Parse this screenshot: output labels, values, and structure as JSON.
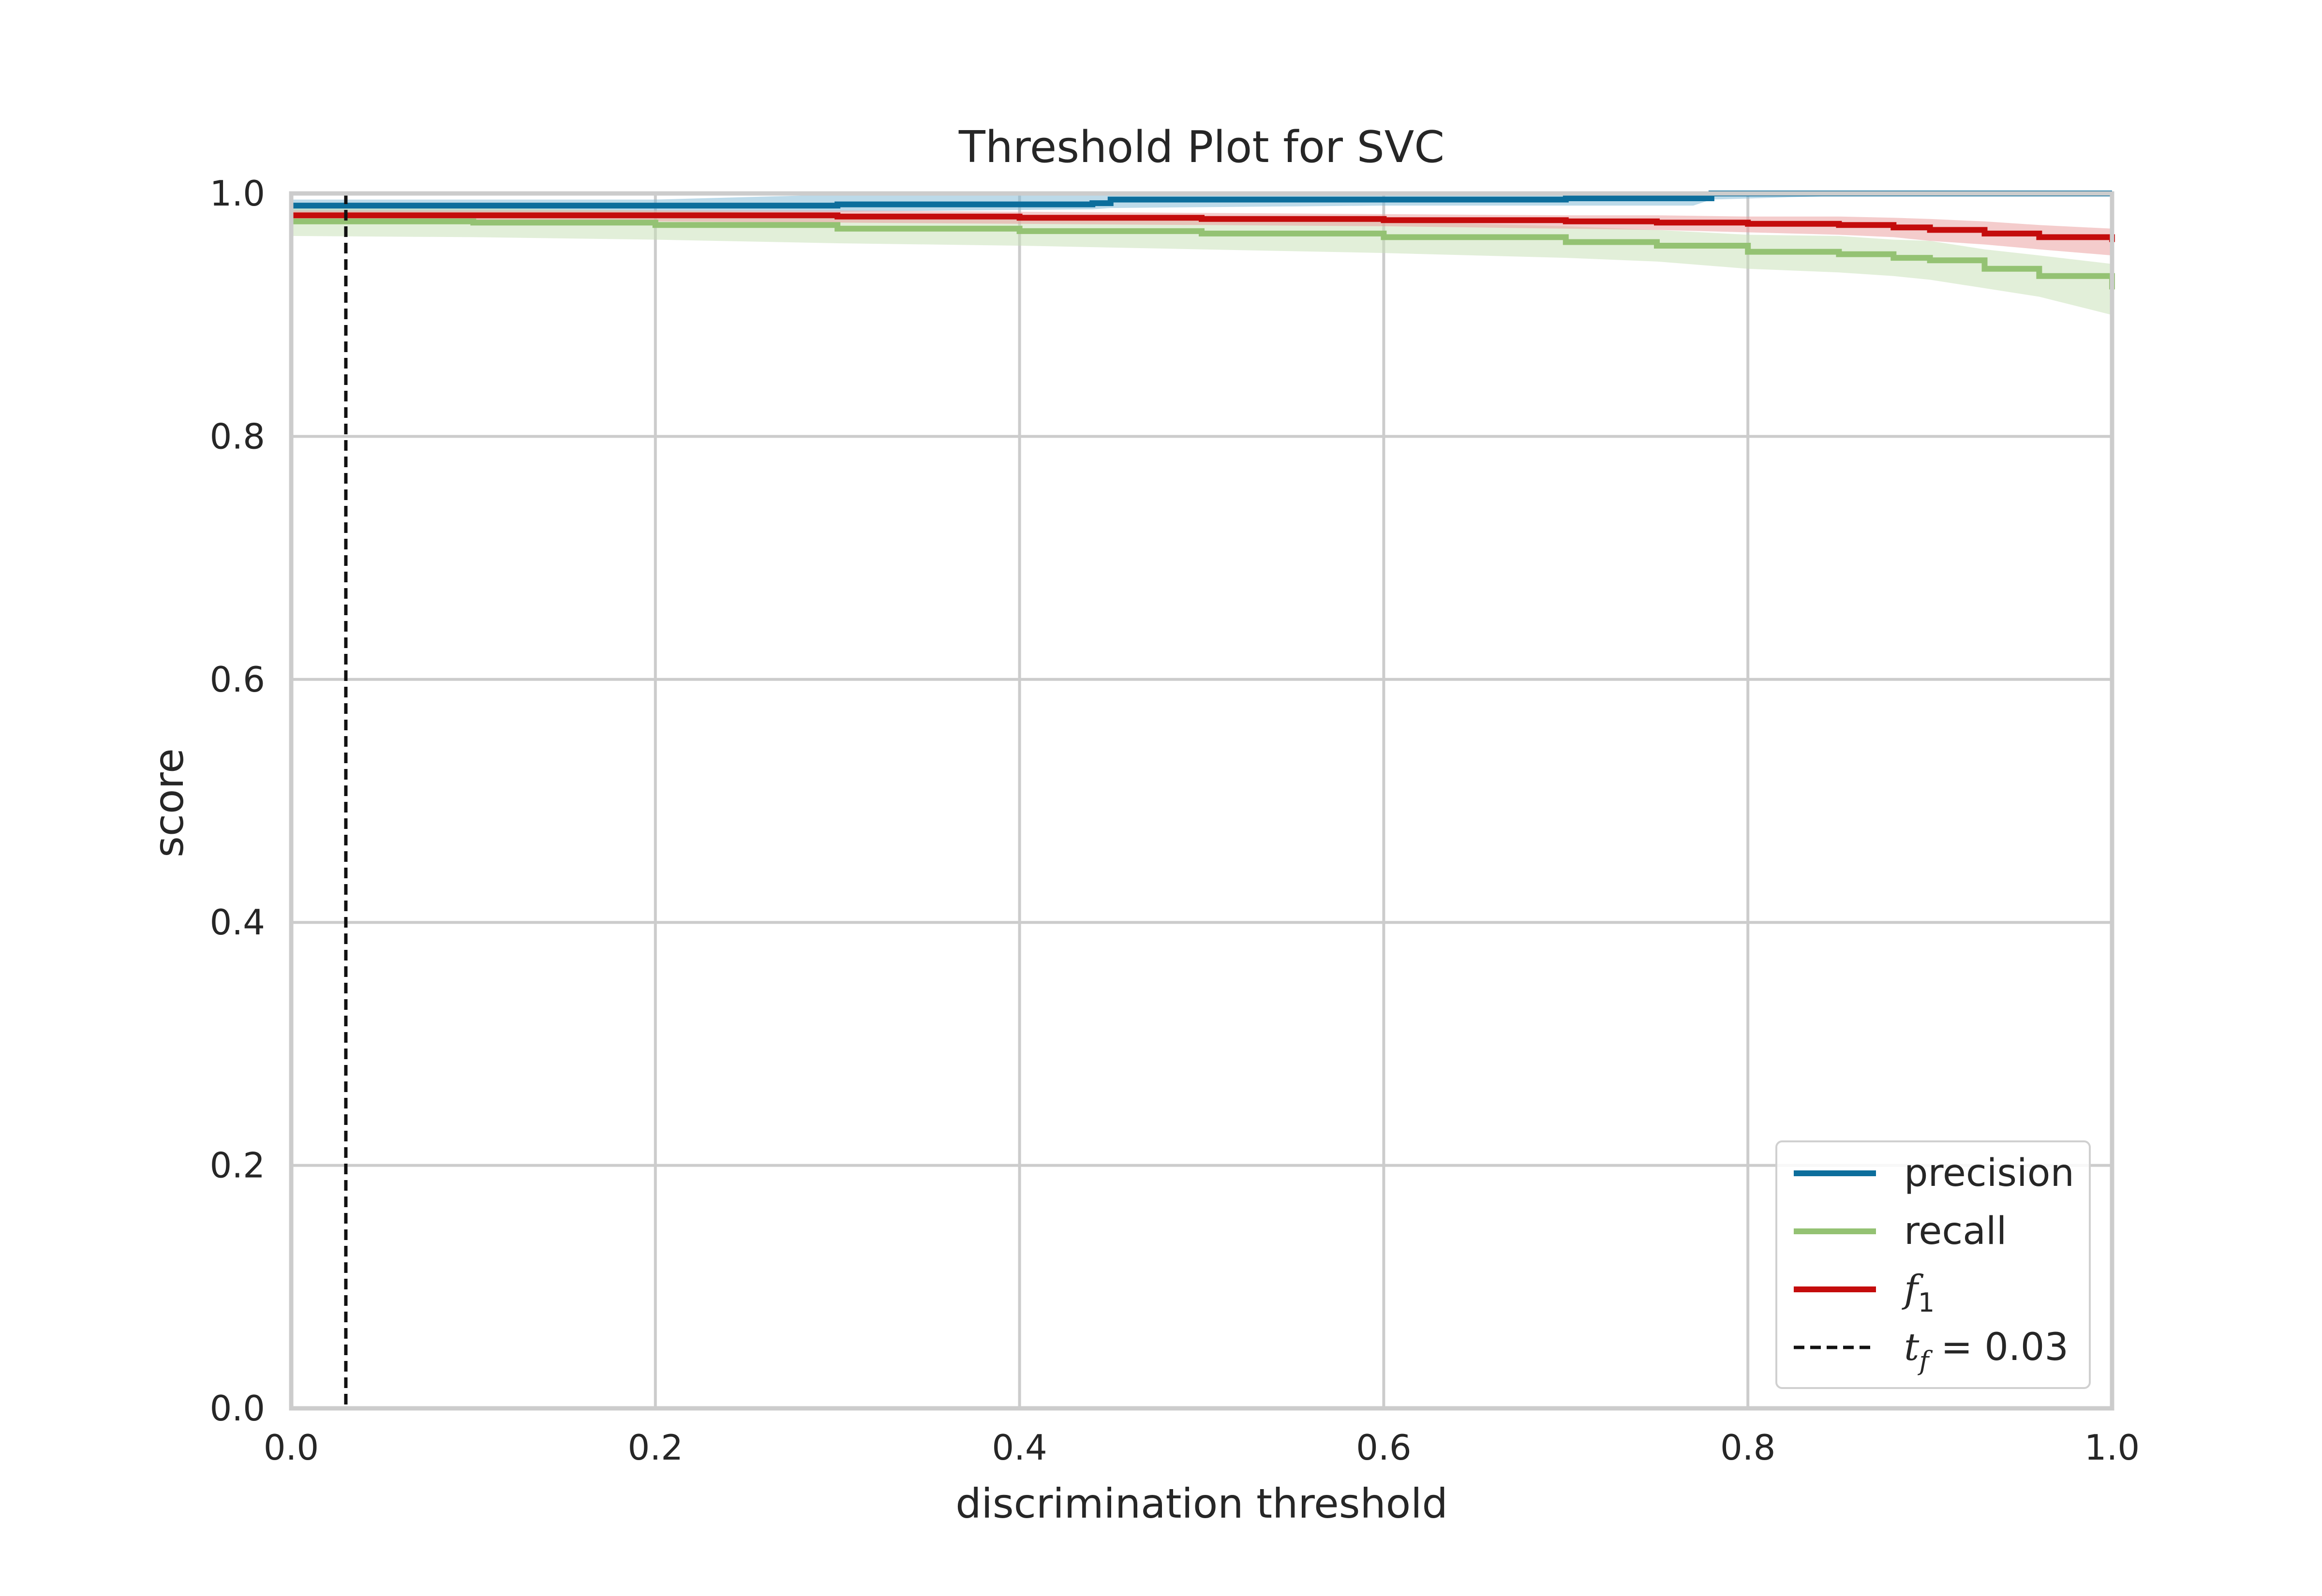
{
  "chart_data": {
    "type": "line",
    "title": "Threshold Plot for SVC",
    "xlabel": "discrimination threshold",
    "ylabel": "score",
    "xlim": [
      0.0,
      1.0
    ],
    "ylim": [
      0.0,
      1.0
    ],
    "grid": true,
    "x_ticks": [
      "0.0",
      "0.2",
      "0.4",
      "0.6",
      "0.8",
      "1.0"
    ],
    "y_ticks": [
      "0.0",
      "0.2",
      "0.4",
      "0.6",
      "0.8",
      "1.0"
    ],
    "legend_position": "bottom-right",
    "series": [
      {
        "name": "precision",
        "color": "#0C6E9C",
        "band_color": "#7AB6D4",
        "x": [
          0.0,
          0.2,
          0.3,
          0.44,
          0.45,
          0.6,
          0.7,
          0.77,
          0.78,
          0.85,
          1.0
        ],
        "y": [
          0.99,
          0.99,
          0.991,
          0.992,
          0.995,
          0.995,
          0.996,
          0.996,
          1.0,
          1.0,
          1.0
        ],
        "lower": [
          0.985,
          0.985,
          0.985,
          0.987,
          0.988,
          0.99,
          0.99,
          0.99,
          0.995,
          0.998,
          0.999
        ],
        "upper": [
          0.995,
          0.995,
          0.999,
          1.0,
          1.0,
          1.0,
          1.0,
          1.0,
          1.0,
          1.0,
          1.0
        ]
      },
      {
        "name": "recall",
        "color": "#94C273",
        "band_color": "#C5E0B3",
        "x": [
          0.0,
          0.1,
          0.2,
          0.3,
          0.4,
          0.5,
          0.6,
          0.7,
          0.75,
          0.8,
          0.85,
          0.88,
          0.9,
          0.93,
          0.96,
          1.0
        ],
        "y": [
          0.977,
          0.976,
          0.974,
          0.971,
          0.969,
          0.967,
          0.964,
          0.96,
          0.957,
          0.952,
          0.95,
          0.947,
          0.945,
          0.938,
          0.932,
          0.921
        ],
        "lower": [
          0.965,
          0.964,
          0.962,
          0.959,
          0.957,
          0.954,
          0.951,
          0.947,
          0.944,
          0.938,
          0.935,
          0.932,
          0.929,
          0.922,
          0.915,
          0.9
        ],
        "upper": [
          0.99,
          0.988,
          0.986,
          0.983,
          0.981,
          0.979,
          0.977,
          0.973,
          0.97,
          0.966,
          0.965,
          0.962,
          0.961,
          0.954,
          0.949,
          0.942
        ]
      },
      {
        "name": "f1",
        "color": "#C40C0C",
        "band_color": "#E99A9A",
        "x": [
          0.0,
          0.1,
          0.2,
          0.3,
          0.4,
          0.5,
          0.6,
          0.7,
          0.75,
          0.8,
          0.85,
          0.88,
          0.9,
          0.93,
          0.96,
          1.0
        ],
        "y": [
          0.982,
          0.982,
          0.982,
          0.981,
          0.98,
          0.979,
          0.978,
          0.977,
          0.976,
          0.975,
          0.974,
          0.972,
          0.97,
          0.967,
          0.964,
          0.96
        ],
        "lower": [
          0.978,
          0.978,
          0.977,
          0.976,
          0.975,
          0.974,
          0.973,
          0.971,
          0.97,
          0.968,
          0.966,
          0.964,
          0.961,
          0.958,
          0.954,
          0.949
        ],
        "upper": [
          0.986,
          0.986,
          0.986,
          0.986,
          0.985,
          0.984,
          0.983,
          0.982,
          0.982,
          0.981,
          0.981,
          0.98,
          0.979,
          0.977,
          0.974,
          0.971
        ]
      }
    ],
    "threshold": {
      "value": 0.03,
      "label": "= 0.03",
      "label_var": "t",
      "label_sub": "f",
      "color": "#111111"
    },
    "legend": [
      {
        "key": "precision",
        "var": "",
        "sub": "",
        "text": "precision",
        "color": "#0C6E9C",
        "style": "solid"
      },
      {
        "key": "recall",
        "var": "",
        "sub": "",
        "text": "recall",
        "color": "#94C273",
        "style": "solid"
      },
      {
        "key": "f1",
        "var": "f",
        "sub": "1",
        "text": "",
        "color": "#C40C0C",
        "style": "solid"
      },
      {
        "key": "threshold",
        "var": "t",
        "sub": "f",
        "text": " = 0.03",
        "color": "#111111",
        "style": "dashed"
      }
    ]
  }
}
